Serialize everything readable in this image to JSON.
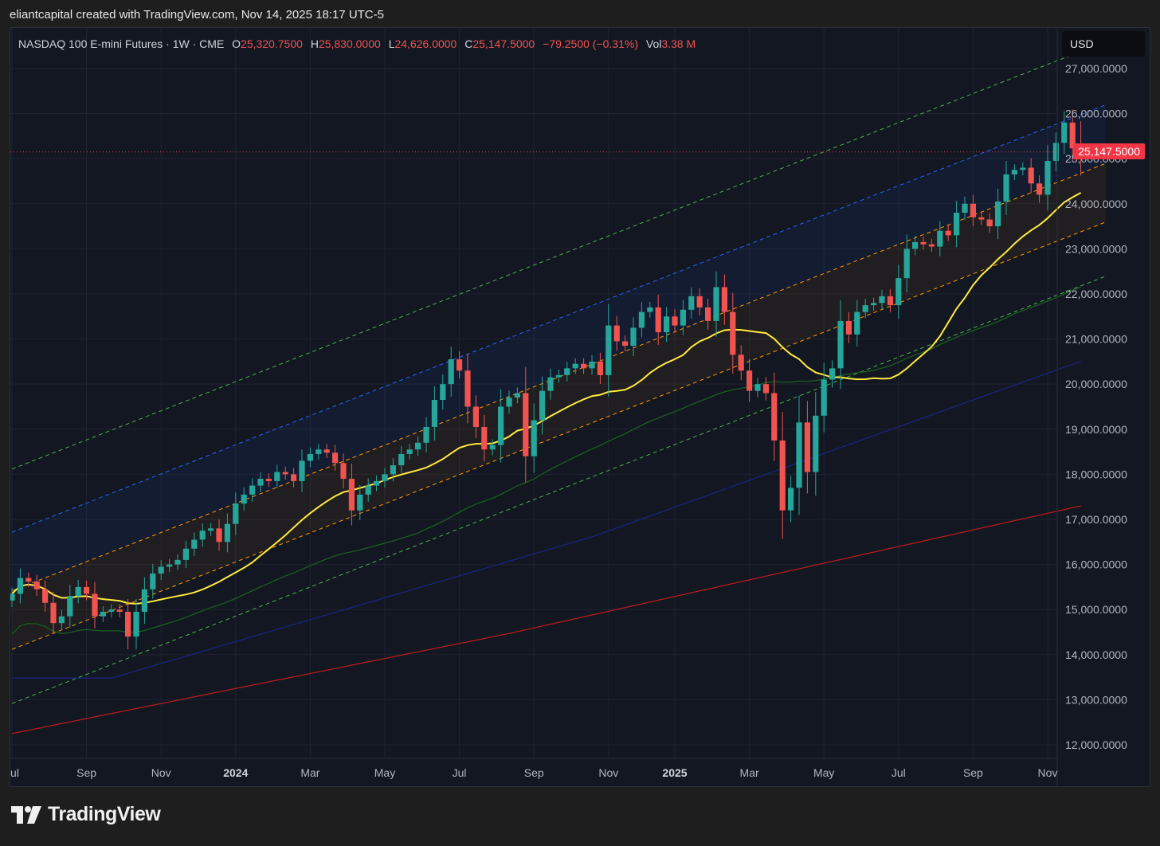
{
  "caption": "eliantcapital created with TradingView.com, Nov 14, 2025 18:17 UTC-5",
  "legend": {
    "symbol": "NASDAQ 100 E-mini Futures · 1W · CME",
    "o_label": "O",
    "o": "25,320.7500",
    "h_label": "H",
    "h": "25,830.0000",
    "l_label": "L",
    "l": "24,626.0000",
    "c_label": "C",
    "c": "25,147.5000",
    "change": "−79.2500 (−0.31%)",
    "vol_label": "Vol",
    "vol": "3.38 M"
  },
  "currency": "USD",
  "last_price_tag": "25,147.5000",
  "brand": "TradingView",
  "colors": {
    "up": "#26a69a",
    "down": "#f05350",
    "ma20": "#ffeb3b",
    "ma50": "#1b5e20",
    "ma100": "#1a237e",
    "ma200": "#b71c1c",
    "channel_outer": "#4caf50",
    "channel_upper": "#2962ff",
    "channel_inner": "#ff9800",
    "price_line": "#f23645"
  },
  "chart_data": {
    "type": "candlestick",
    "timeframe": "1W",
    "y_ticks": [
      "27,000.0000",
      "26,000.0000",
      "25,000.0000",
      "24,000.0000",
      "23,000.0000",
      "22,000.0000",
      "21,000.0000",
      "20,000.0000",
      "19,000.0000",
      "18,000.0000",
      "17,000.0000",
      "16,000.0000",
      "15,000.0000",
      "14,000.0000",
      "13,000.0000",
      "12,000.0000"
    ],
    "y_tick_values": [
      27000,
      26000,
      25000,
      24000,
      23000,
      22000,
      21000,
      20000,
      19000,
      18000,
      17000,
      16000,
      15000,
      14000,
      13000,
      12000
    ],
    "ylim": [
      11700,
      27900
    ],
    "x_ticks": [
      {
        "label": "Jul",
        "week": 0,
        "bold": false
      },
      {
        "label": "Sep",
        "week": 9,
        "bold": false
      },
      {
        "label": "Nov",
        "week": 18,
        "bold": false
      },
      {
        "label": "2024",
        "week": 27,
        "bold": true
      },
      {
        "label": "Mar",
        "week": 36,
        "bold": false
      },
      {
        "label": "May",
        "week": 45,
        "bold": false
      },
      {
        "label": "Jul",
        "week": 54,
        "bold": false
      },
      {
        "label": "Sep",
        "week": 63,
        "bold": false
      },
      {
        "label": "Nov",
        "week": 72,
        "bold": false
      },
      {
        "label": "2025",
        "week": 80,
        "bold": true
      },
      {
        "label": "Mar",
        "week": 89,
        "bold": false
      },
      {
        "label": "May",
        "week": 98,
        "bold": false
      },
      {
        "label": "Jul",
        "week": 107,
        "bold": false
      },
      {
        "label": "Sep",
        "week": 116,
        "bold": false
      },
      {
        "label": "Nov",
        "week": 125,
        "bold": false
      }
    ],
    "closes": [
      15350,
      15700,
      15620,
      15450,
      15150,
      14700,
      14850,
      15300,
      15500,
      15350,
      14850,
      14950,
      15000,
      14950,
      14400,
      14950,
      15450,
      15800,
      15950,
      16000,
      16100,
      16350,
      16550,
      16750,
      16800,
      16500,
      16900,
      17350,
      17550,
      17750,
      17900,
      17850,
      18050,
      18000,
      17850,
      18300,
      18450,
      18550,
      18480,
      18250,
      17900,
      17200,
      17550,
      17750,
      17850,
      18000,
      18200,
      18450,
      18550,
      18700,
      19050,
      19650,
      20000,
      20550,
      20300,
      19500,
      19050,
      18550,
      18650,
      19500,
      19700,
      19800,
      18400,
      19200,
      19850,
      20150,
      20200,
      20350,
      20450,
      20350,
      20500,
      20200,
      21300,
      20950,
      20850,
      21250,
      21600,
      21700,
      21150,
      21500,
      21300,
      21650,
      21950,
      21700,
      21400,
      22150,
      21600,
      20650,
      20300,
      19850,
      20000,
      19800,
      18750,
      17200,
      17700,
      19150,
      18050,
      19300,
      20100,
      20350,
      21400,
      21100,
      21600,
      21750,
      21800,
      21950,
      21750,
      22350,
      23000,
      23150,
      23100,
      23050,
      23400,
      23300,
      23800,
      24000,
      23700,
      23650,
      23500,
      24050,
      24650,
      24750,
      24800,
      24450,
      24200,
      24950,
      25350,
      25800,
      25230,
      25147.5
    ]
  }
}
